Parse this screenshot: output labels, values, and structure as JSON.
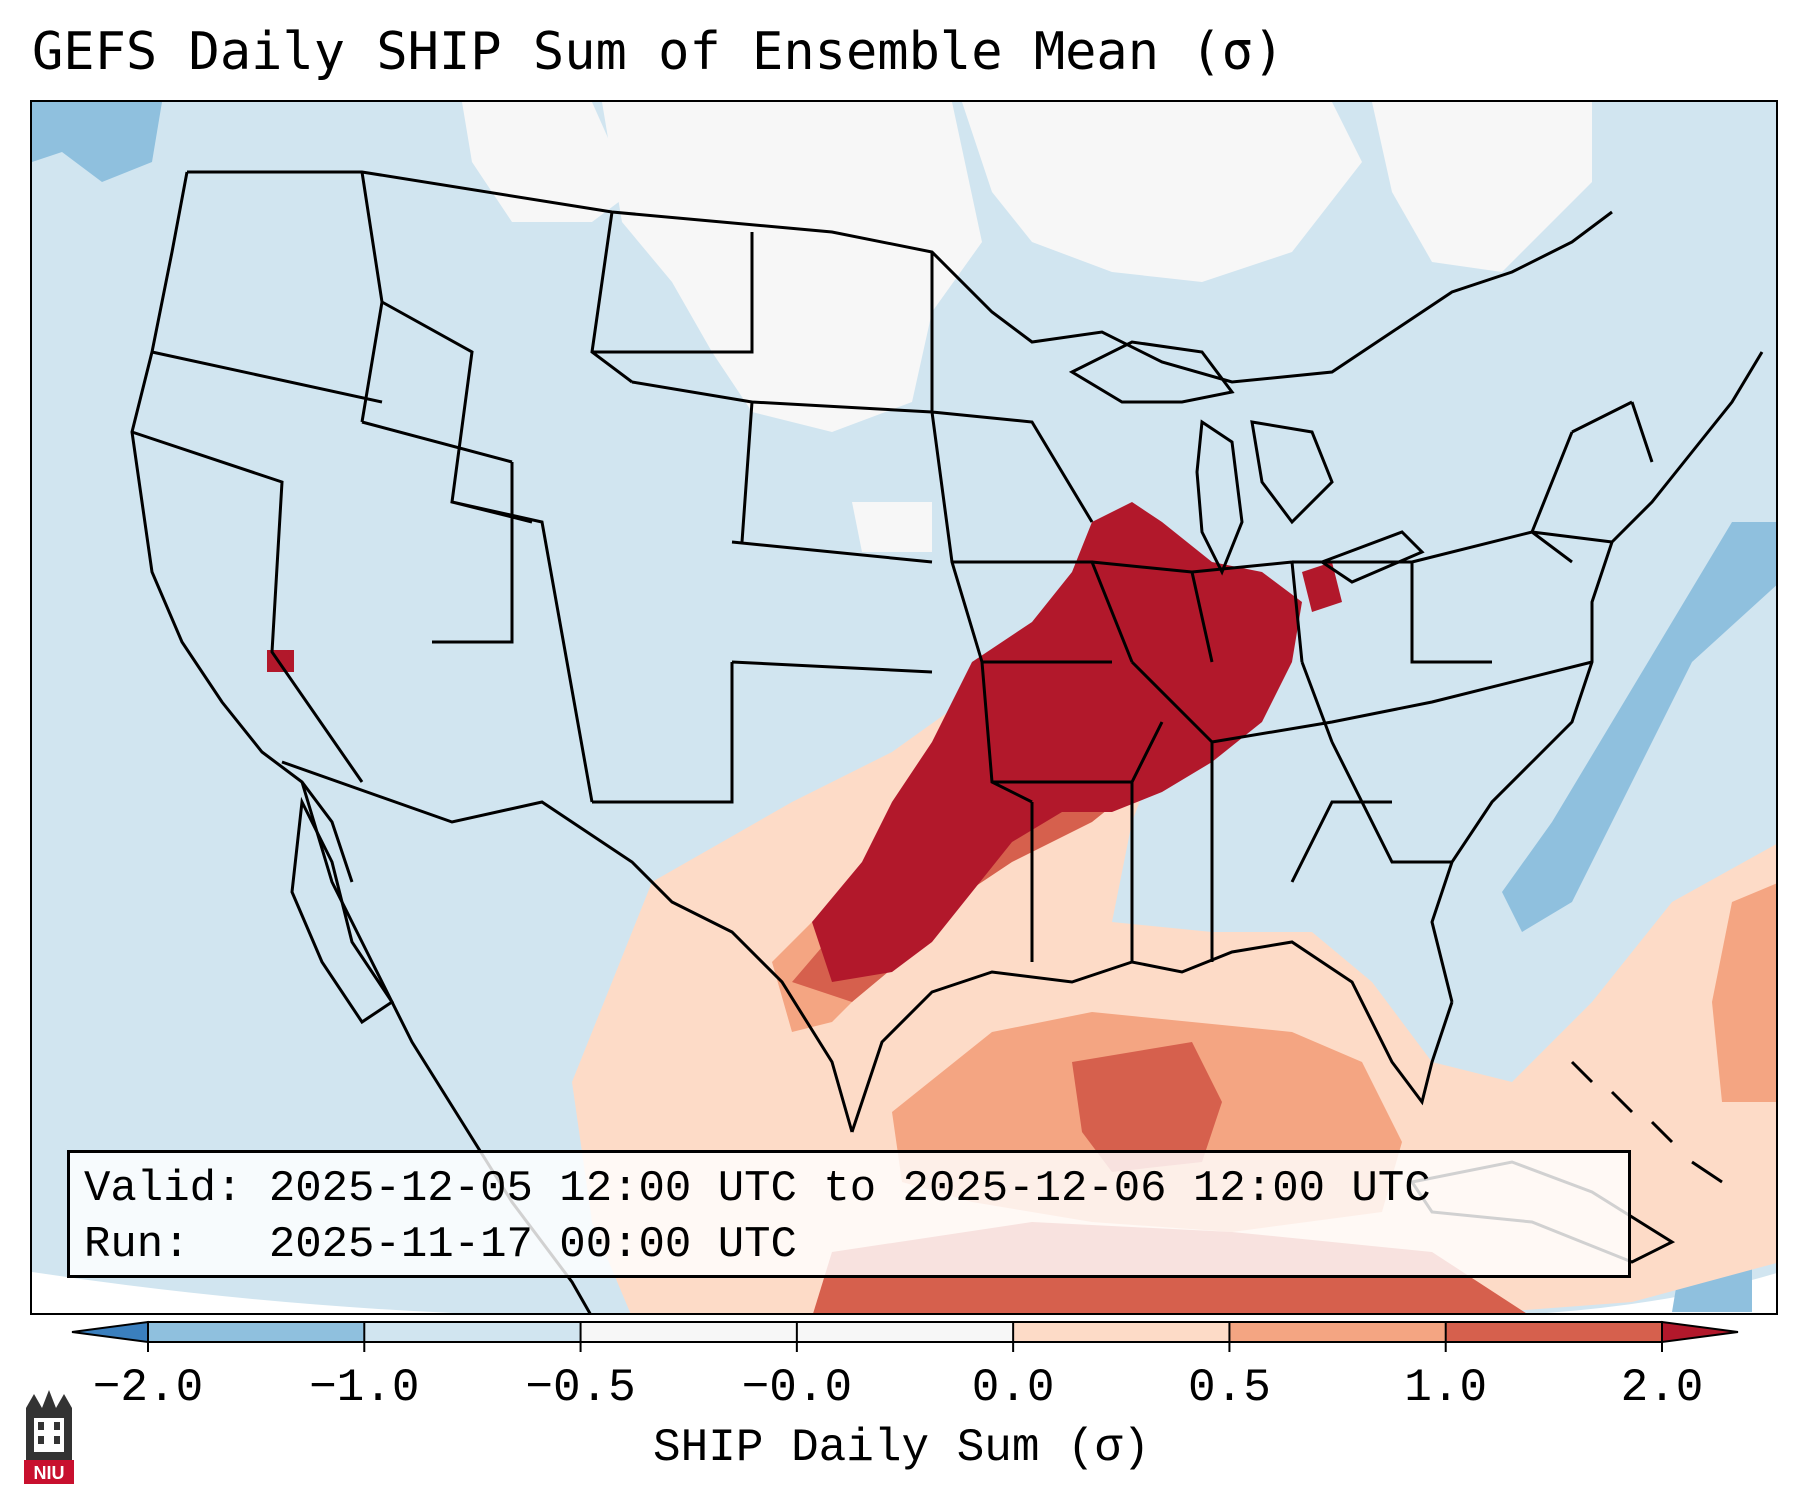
{
  "title": "GEFS Daily SHIP Sum of Ensemble Mean (σ)",
  "info": {
    "valid_label": "Valid:",
    "valid_value": "2025-12-05 12:00 UTC to 2025-12-06 12:00 UTC",
    "run_label": "Run:",
    "run_value": "2025-11-17 00:00 UTC"
  },
  "colorbar": {
    "label": "SHIP Daily Sum (σ)",
    "ticks": [
      "−2.0",
      "−1.0",
      "−0.5",
      "−0.0",
      "0.0",
      "0.5",
      "1.0",
      "2.0"
    ],
    "colors": [
      "#3a7fbe",
      "#8fc0de",
      "#d1e5f0",
      "#f7f7f7",
      "#fddbc7",
      "#f4a582",
      "#d6604d",
      "#b2182b"
    ]
  },
  "logo": {
    "text": "NIU"
  }
}
